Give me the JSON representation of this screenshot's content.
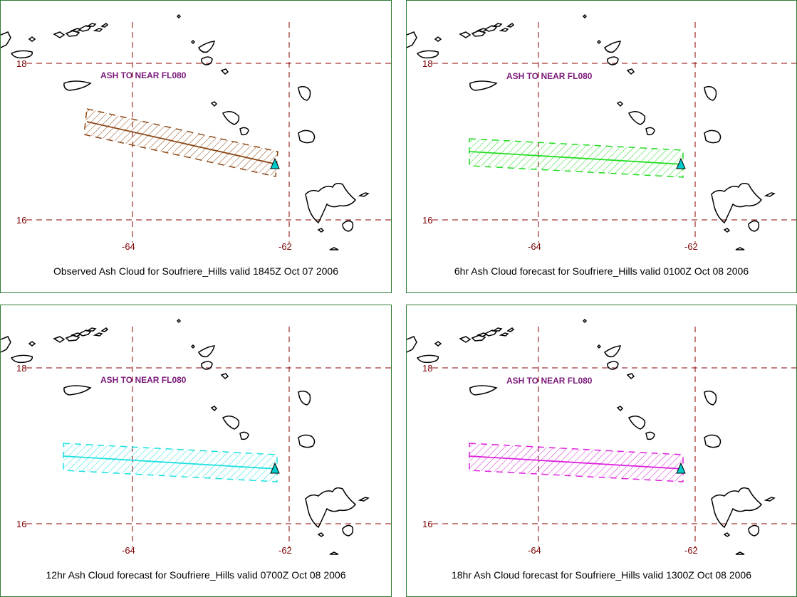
{
  "map": {
    "lat_labels": [
      "18",
      "16"
    ],
    "lon_labels": [
      "-64",
      "-62"
    ],
    "ash_label": "ASH TO NEAR FL080"
  },
  "panels": [
    {
      "caption": "Observed Ash Cloud for Soufriere_Hills valid 1845Z Oct 07 2006",
      "color": "#8B4513"
    },
    {
      "caption": "6hr Ash Cloud forecast for Soufriere_Hills valid 0100Z Oct 08 2006",
      "color": "#22dd22"
    },
    {
      "caption": "12hr Ash Cloud forecast for Soufriere_Hills valid 0700Z Oct 08 2006",
      "color": "#1ee0e0"
    },
    {
      "caption": "18hr Ash Cloud forecast for Soufriere_Hills valid 1300Z Oct 08 2006",
      "color": "#dd22dd"
    }
  ],
  "colors": {
    "grid": "#8b0000",
    "coast": "#000000",
    "border": "#2e7d32",
    "volcano": "#00cccc"
  },
  "icons": {
    "volcano": "volcano-marker-icon"
  }
}
